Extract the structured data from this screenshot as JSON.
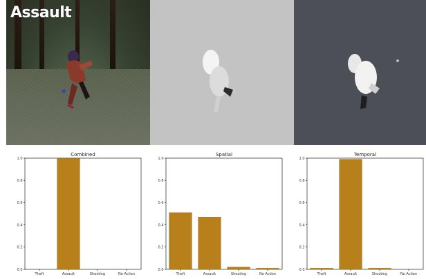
{
  "video": {
    "label": "Assault"
  },
  "colors": {
    "bar": "#b8801b",
    "bar_stroke": "#8f6214",
    "axis": "#000000"
  },
  "chart_data": [
    {
      "type": "bar",
      "title": "Combined",
      "categories": [
        "Theft",
        "Assault",
        "Shooting",
        "No Action"
      ],
      "values": [
        0.0,
        1.0,
        0.0,
        0.0
      ],
      "ylim": [
        0,
        1.0
      ],
      "yticks": [
        "0.0",
        "0.2",
        "0.4",
        "0.6",
        "0.8",
        "1.0"
      ],
      "xlabel": "",
      "ylabel": "",
      "grid": false
    },
    {
      "type": "bar",
      "title": "Spatial",
      "categories": [
        "Theft",
        "Assault",
        "Shooting",
        "No Action"
      ],
      "values": [
        0.51,
        0.47,
        0.02,
        0.01
      ],
      "ylim": [
        0,
        1.0
      ],
      "yticks": [
        "0.0",
        "0.2",
        "0.4",
        "0.6",
        "0.8",
        "1.0"
      ],
      "xlabel": "",
      "ylabel": "",
      "grid": false
    },
    {
      "type": "bar",
      "title": "Temporal",
      "categories": [
        "Theft",
        "Assault",
        "Shooting",
        "No Action"
      ],
      "values": [
        0.01,
        0.99,
        0.01,
        0.0
      ],
      "ylim": [
        0,
        1.0
      ],
      "yticks": [
        "0.0",
        "0.2",
        "0.4",
        "0.6",
        "0.8",
        "1.0"
      ],
      "xlabel": "",
      "ylabel": "",
      "grid": false
    }
  ]
}
